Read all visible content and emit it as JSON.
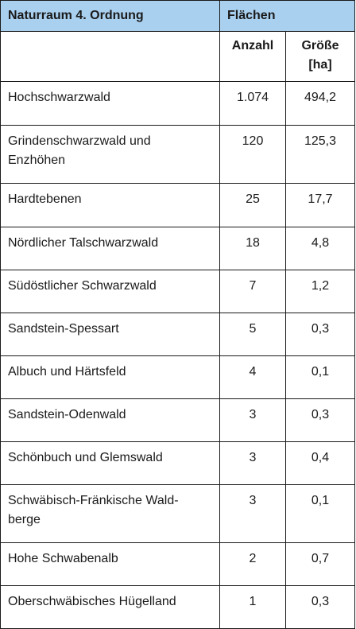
{
  "header": {
    "col1": "Naturraum 4. Ordnung",
    "group": "Flächen",
    "count": "Anzahl",
    "size_line1": "Größe",
    "size_line2": "[ha]"
  },
  "rows": [
    {
      "name": "Hochschwarzwald",
      "count": "1.074",
      "size": "494,2"
    },
    {
      "name": "Grindenschwarzwald und Enzhöhen",
      "count": "120",
      "size": "125,3"
    },
    {
      "name": "Hardtebenen",
      "count": "25",
      "size": "17,7"
    },
    {
      "name": "Nördlicher Talschwarzwald",
      "count": "18",
      "size": "4,8"
    },
    {
      "name": "Südöstlicher Schwarzwald",
      "count": "7",
      "size": "1,2"
    },
    {
      "name": "Sandstein-Spessart",
      "count": "5",
      "size": "0,3"
    },
    {
      "name": "Albuch und Härtsfeld",
      "count": "4",
      "size": "0,1"
    },
    {
      "name": "Sandstein-Odenwald",
      "count": "3",
      "size": "0,3"
    },
    {
      "name": "Schönbuch und Glemswald",
      "count": "3",
      "size": "0,4"
    },
    {
      "name": "Schwäbisch-Fränkische Wald-berge",
      "count": "3",
      "size": "0,1"
    },
    {
      "name": "Hohe Schwabenalb",
      "count": "2",
      "size": "0,7"
    },
    {
      "name": "Oberschwäbisches Hügelland",
      "count": "1",
      "size": "0,3"
    }
  ],
  "colors": {
    "header_band": "#a9d0ef",
    "border": "#1a1a1a"
  }
}
